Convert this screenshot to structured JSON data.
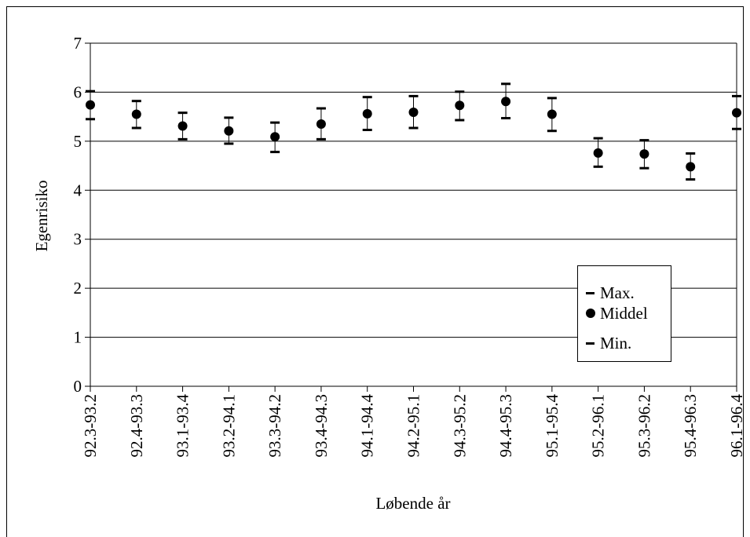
{
  "chart_data": {
    "type": "scatter",
    "title": "",
    "xlabel": "Løbende år",
    "ylabel": "Egenrisiko",
    "ylim": [
      0,
      7
    ],
    "yticks": [
      "0",
      "1",
      "2",
      "3",
      "4",
      "5",
      "6",
      "7"
    ],
    "grid": true,
    "legend_position": "bottom-right",
    "categories": [
      "92.3-93.2",
      "92.4-93.3",
      "93.1-93.4",
      "93.2-94.1",
      "93.3-94.2",
      "93.4-94.3",
      "94.1-94.4",
      "94.2-95.1",
      "94.3-95.2",
      "94.4-95.3",
      "95.1-95.4",
      "95.2-96.1",
      "95.3-96.2",
      "95.4-96.3",
      "96.1-96.4"
    ],
    "series": [
      {
        "name": "Max.",
        "marker": "dash",
        "values": [
          6.02,
          5.82,
          5.58,
          5.48,
          5.38,
          5.67,
          5.9,
          5.92,
          6.01,
          6.17,
          5.88,
          5.06,
          5.02,
          4.75,
          5.92
        ]
      },
      {
        "name": "Middel",
        "marker": "circle",
        "values": [
          5.74,
          5.55,
          5.31,
          5.21,
          5.09,
          5.35,
          5.56,
          5.59,
          5.73,
          5.81,
          5.55,
          4.76,
          4.74,
          4.48,
          5.58
        ]
      },
      {
        "name": "Min.",
        "marker": "dash",
        "values": [
          5.45,
          5.27,
          5.04,
          4.95,
          4.78,
          5.04,
          5.23,
          5.27,
          5.43,
          5.47,
          5.21,
          4.48,
          4.45,
          4.22,
          5.25
        ]
      }
    ],
    "colors": {
      "marker": "#000000",
      "grid": "#000000",
      "background": "#ffffff"
    }
  }
}
